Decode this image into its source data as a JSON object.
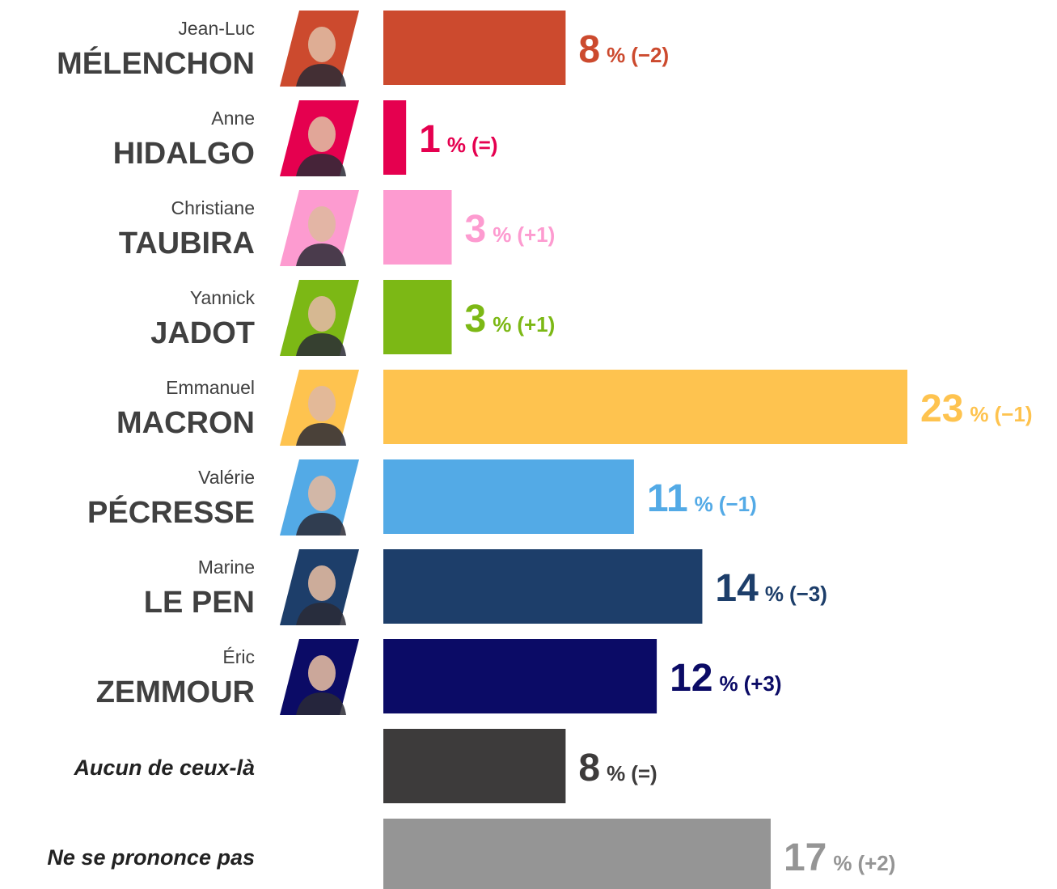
{
  "chart_data": {
    "type": "bar",
    "first_names": [
      "Jean-Luc",
      "Anne",
      "Christiane",
      "Yannick",
      "Emmanuel",
      "Valérie",
      "Marine",
      "Éric",
      null,
      null
    ],
    "categories": [
      "MÉLENCHON",
      "HIDALGO",
      "TAUBIRA",
      "JADOT",
      "MACRON",
      "PÉCRESSE",
      "LE PEN",
      "ZEMMOUR",
      "Aucun de ceux-là",
      "Ne se prononce pas"
    ],
    "values": [
      8,
      1,
      3,
      3,
      23,
      11,
      14,
      12,
      8,
      17
    ],
    "unit": "%",
    "changes": [
      "(−2)",
      "(=)",
      "(+1)",
      "(+1)",
      "(−1)",
      "(−1)",
      "(−3)",
      "(+3)",
      "(=)",
      "(+2)"
    ],
    "colors": [
      "#cc4a2e",
      "#e5004f",
      "#fd9bd0",
      "#7cb815",
      "#fec34f",
      "#53aae6",
      "#1d3e6a",
      "#0b0b66",
      "#3d3b3b",
      "#959595"
    ]
  }
}
